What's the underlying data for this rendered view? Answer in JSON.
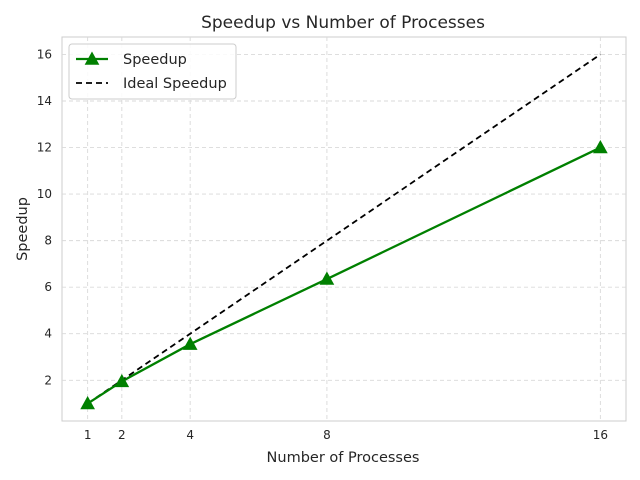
{
  "chart_data": {
    "type": "line",
    "title": "Speedup vs Number of Processes",
    "xlabel": "Number of Processes",
    "ylabel": "Speedup",
    "x": [
      1,
      2,
      4,
      8,
      16
    ],
    "x_ticks": [
      1,
      2,
      4,
      8,
      16
    ],
    "y_ticks": [
      2,
      4,
      6,
      8,
      10,
      12,
      14,
      16
    ],
    "xlim": [
      0.25,
      16.75
    ],
    "ylim": [
      0.25,
      16.75
    ],
    "grid": true,
    "legend_position": "top-left",
    "series": [
      {
        "name": "Speedup",
        "values": [
          1.0,
          1.95,
          3.55,
          6.35,
          12.0
        ],
        "color": "#008000",
        "line_style": "solid",
        "marker": "triangle"
      },
      {
        "name": "Ideal Speedup",
        "values": [
          1,
          2,
          4,
          8,
          16
        ],
        "color": "#000000",
        "line_style": "dashed",
        "marker": "none"
      }
    ]
  }
}
